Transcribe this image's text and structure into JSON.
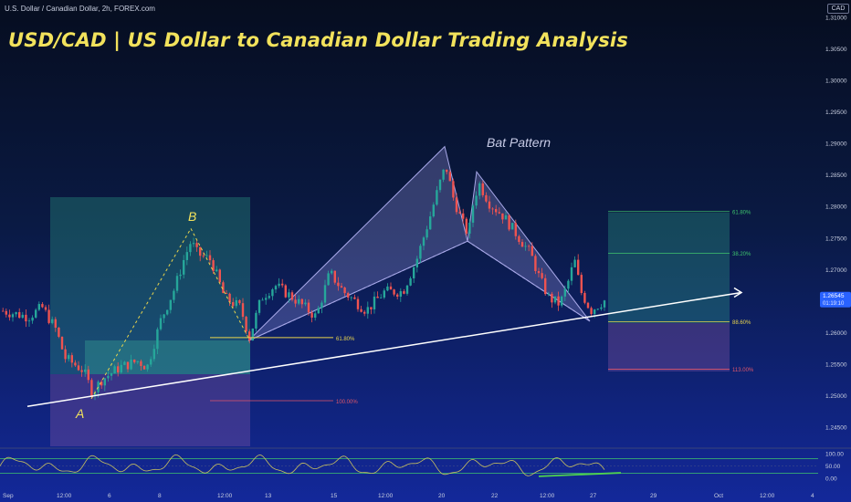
{
  "header": {
    "symbol": "U.S. Dollar / Canadian Dollar, 2h, FOREX.com",
    "title": "USD/CAD | US Dollar to Canadian Dollar Trading Analysis",
    "currency": "CAD"
  },
  "price_axis": {
    "ticks": [
      "1.31000",
      "1.30500",
      "1.30000",
      "1.29500",
      "1.29000",
      "1.28500",
      "1.28000",
      "1.27500",
      "1.27000",
      "1.26500",
      "1.26000",
      "1.25500",
      "1.25000",
      "1.24500"
    ],
    "current_price": "1.26545",
    "countdown": "01:19:10"
  },
  "time_axis": {
    "ticks": [
      "Sep",
      "12:00",
      "6",
      "8",
      "12:00",
      "13",
      "15",
      "12:00",
      "20",
      "22",
      "12:00",
      "27",
      "29",
      "Oct",
      "12:00",
      "4"
    ]
  },
  "annotations": {
    "pattern_label": "Bat Pattern",
    "point_a": "A",
    "point_b": "B",
    "fib_left_1": "61.80%",
    "fib_left_2": "100.00%",
    "fib_right_1": "61.80%",
    "fib_right_2": "38.20%",
    "fib_right_3": "88.60%",
    "fib_right_4": "113.00%"
  },
  "oscillator": {
    "ticks": [
      "100.00",
      "50.00",
      "0.00"
    ]
  },
  "colors": {
    "title": "#f2e25c",
    "bull_candle": "#26a69a",
    "bear_candle": "#ef5350",
    "trendline": "#ffffff",
    "fib_green": "#3ec46d",
    "fib_red": "#e0566a",
    "fib_yellow": "#e8d44d",
    "price_badge": "#2962ff",
    "oscillator_line": "#c8c060",
    "oscillator_trend": "#4fd34f"
  },
  "chart_data": {
    "type": "candlestick",
    "title": "USD/CAD | US Dollar to Canadian Dollar Trading Analysis",
    "xlabel": "",
    "ylabel": "",
    "ylim": [
      1.2425,
      1.3125
    ],
    "y_ticks": [
      1.245,
      1.25,
      1.255,
      1.26,
      1.265,
      1.27,
      1.275,
      1.28,
      1.285,
      1.29,
      1.295,
      1.3,
      1.305,
      1.31
    ],
    "last_price": 1.26545,
    "bat_pattern": {
      "X": 1.2587,
      "A": 1.2895,
      "B": 1.2745,
      "C": 1.2855,
      "D": 1.2618
    },
    "ab_swing": {
      "A": 1.2495,
      "B": 1.2765
    },
    "trendline": {
      "start": 1.2483,
      "end": 1.2652
    },
    "right_fib_levels": [
      {
        "label": "61.80%",
        "price": 1.2792
      },
      {
        "label": "38.20%",
        "price": 1.2726
      },
      {
        "label": "88.60%",
        "price": 1.2617
      },
      {
        "label": "113.00%",
        "price": 1.2542
      }
    ],
    "left_fib_levels": [
      {
        "label": "61.80%",
        "price": 1.2592
      },
      {
        "label": "100.00%",
        "price": 1.2492
      }
    ],
    "oscillator_range": [
      0,
      100
    ]
  }
}
